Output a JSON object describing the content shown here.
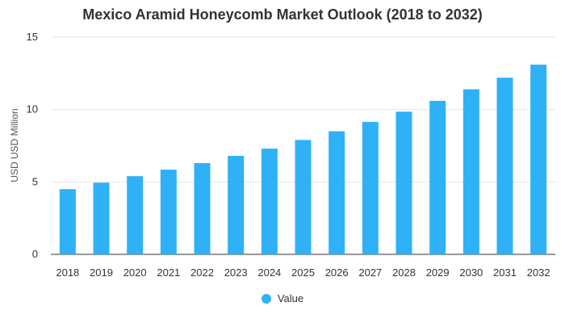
{
  "chart_data": {
    "type": "bar",
    "title": "Mexico Aramid Honeycomb Market Outlook (2018 to 2032)",
    "xlabel": "",
    "ylabel": "USD USD Million",
    "categories": [
      "2018",
      "2019",
      "2020",
      "2021",
      "2022",
      "2023",
      "2024",
      "2025",
      "2026",
      "2027",
      "2028",
      "2029",
      "2030",
      "2031",
      "2032"
    ],
    "series": [
      {
        "name": "Value",
        "color": "#2eb1f7",
        "values": [
          4.5,
          4.95,
          5.4,
          5.85,
          6.3,
          6.8,
          7.3,
          7.9,
          8.5,
          9.15,
          9.85,
          10.6,
          11.4,
          12.2,
          13.1
        ]
      }
    ],
    "ylim": [
      0,
      15
    ],
    "yticks": [
      0,
      5,
      10,
      15
    ],
    "grid": true,
    "legend_position": "bottom-center"
  }
}
